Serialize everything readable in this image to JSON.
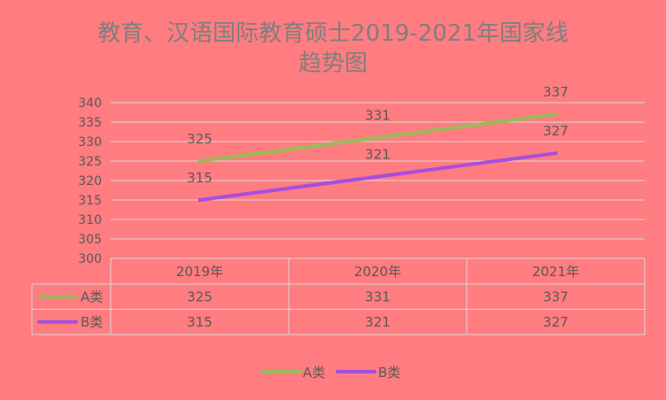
{
  "chart_data": {
    "type": "line",
    "title_line1": "教育、汉语国际教育硕士2019-2021年国家线",
    "title_line2": "趋势图",
    "categories": [
      "2019年",
      "2020年",
      "2021年"
    ],
    "series": [
      {
        "name": "A类",
        "values": [
          325,
          331,
          337
        ],
        "color": "#9bbb59"
      },
      {
        "name": "B类",
        "values": [
          315,
          321,
          327
        ],
        "color": "#a64ee0"
      }
    ],
    "ylim": [
      300,
      340
    ],
    "ytick_step": 5,
    "grid": true,
    "legend": "bottom",
    "data_table": true
  }
}
